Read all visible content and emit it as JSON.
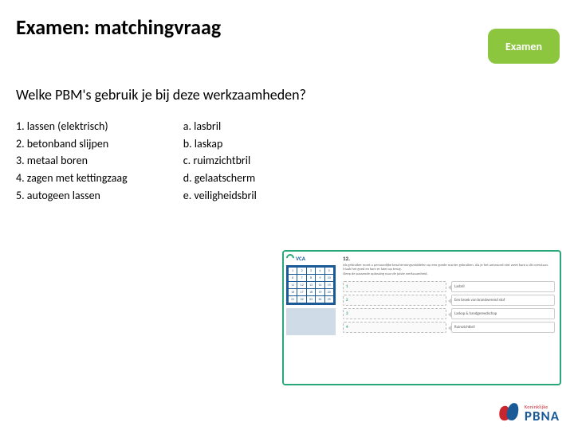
{
  "title": "Examen: matchingvraag",
  "badge": "Examen",
  "question": "Welke PBM's gebruik je bij deze werkzaamheden?",
  "left_items": [
    "1. lassen (elektrisch)",
    "2. betonband slijpen",
    "3. metaal boren",
    "4. zagen met kettingzaag",
    "5. autogeen lassen"
  ],
  "right_items": [
    "a. lasbril",
    "b. laskap",
    "c. ruimzichtbril",
    "d. gelaatscherm",
    "e. veiligheidsbril"
  ],
  "embed": {
    "border_color": "#2aa87a",
    "logo_text": "VCA",
    "logo_color": "#1a5a96",
    "sidebar_bg": "#1a5a96",
    "nav_cells": [
      "1",
      "2",
      "3",
      "4",
      "5",
      "6",
      "7",
      "8",
      "9",
      "10",
      "11",
      "12",
      "13",
      "14",
      "15",
      "16",
      "17",
      "18",
      "19",
      "20",
      "21",
      "22",
      "23",
      "24",
      "25"
    ],
    "qnum": "12.",
    "qtext_lines": [
      "Als gebruiker moet u persoonlijke beschermingsmiddelen op een goede manier gebruiken. Als je het antwoord niet weet kunt u dit overslaan. Maak het goed en kom er later op terug.",
      "Sleep de passende oplossing naar de juiste werkzaamheid."
    ],
    "rows": [
      {
        "num": "1",
        "left": "",
        "right": "Lasbril"
      },
      {
        "num": "2",
        "left": "",
        "right": "Een broek van brandwerend stof"
      },
      {
        "num": "3",
        "left": "",
        "right": "Laskap & handgereedschap"
      },
      {
        "num": "4",
        "left": "",
        "right": "Ruimzichtbril"
      }
    ]
  },
  "pbna": {
    "small": "Koninklijke",
    "big": "PBNA",
    "red": "#c9252c",
    "blue": "#1a5a96"
  },
  "colors": {
    "badge_bg": "#8cc63f",
    "text": "#000000"
  }
}
